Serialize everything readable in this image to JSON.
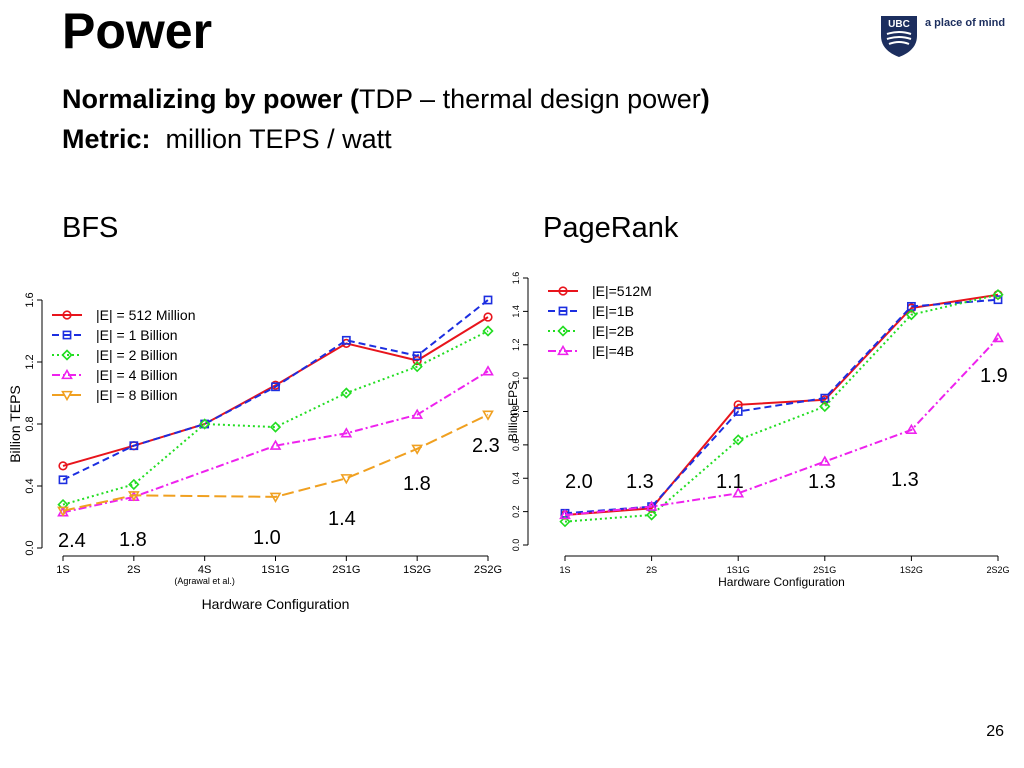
{
  "slide": {
    "title": "Power",
    "line1_bold": "Normalizing by power (",
    "line1_rest": "TDP – thermal design power",
    "line1_close": ")",
    "line2_bold": "Metric:",
    "line2_rest": "million TEPS / watt",
    "logo_text": "a place of mind",
    "logo_badge": "UBC",
    "page_number": "26"
  },
  "colors": {
    "red": "#e8141c",
    "blue": "#1c2ee0",
    "green": "#22dd22",
    "magenta": "#ee22ee",
    "orange": "#f0a020",
    "brand": "#1c2e5e"
  },
  "chart_data": [
    {
      "type": "line",
      "heading": "BFS",
      "categories": [
        "1S",
        "2S",
        "4S",
        "1S1G",
        "2S1G",
        "1S2G",
        "2S2G"
      ],
      "category_note": "(Agrawal et al.)",
      "xlabel": "Hardware Configuration",
      "ylabel": "Billion TEPS",
      "ylim": [
        0,
        1.6
      ],
      "yticks": [
        "0.0",
        "0.4",
        "0.8",
        "1.2",
        "1.6"
      ],
      "legend_position": "top-left",
      "series": [
        {
          "name": "|E| = 512 Million",
          "color": "red",
          "marker": "circle",
          "dash": "solid",
          "values": [
            0.53,
            0.66,
            0.8,
            1.05,
            1.32,
            1.21,
            1.49
          ]
        },
        {
          "name": "|E| = 1 Billion",
          "color": "blue",
          "marker": "square",
          "dash": "dashed",
          "values": [
            0.44,
            0.66,
            0.8,
            1.04,
            1.34,
            1.24,
            1.6
          ]
        },
        {
          "name": "|E| = 2 Billion",
          "color": "green",
          "marker": "diamond",
          "dash": "dotted",
          "values": [
            0.28,
            0.41,
            0.8,
            0.78,
            1.0,
            1.17,
            1.4
          ]
        },
        {
          "name": "|E| = 4 Billion",
          "color": "magenta",
          "marker": "triangle-up",
          "dash": "dashdot",
          "values": [
            0.23,
            0.33,
            null,
            0.66,
            0.74,
            0.86,
            1.14
          ]
        },
        {
          "name": "|E| = 8 Billion",
          "color": "orange",
          "marker": "triangle-down",
          "dash": "longdash",
          "values": [
            0.24,
            0.34,
            null,
            0.33,
            0.45,
            0.64,
            0.86
          ]
        }
      ],
      "annotations": [
        "2.4",
        "1.8",
        "1.0",
        "1.4",
        "1.8",
        "2.3"
      ]
    },
    {
      "type": "line",
      "heading": "PageRank",
      "categories": [
        "1S",
        "2S",
        "1S1G",
        "2S1G",
        "1S2G",
        "2S2G"
      ],
      "xlabel": "Hardware Configuration",
      "ylabel": "Billion EPS",
      "ylim": [
        0,
        1.6
      ],
      "yticks": [
        "0.0",
        "0.2",
        "0.4",
        "0.6",
        "0.8",
        "1.0",
        "1.2",
        "1.4",
        "1.6"
      ],
      "legend_position": "top-left",
      "series": [
        {
          "name": "|E|=512M",
          "color": "red",
          "marker": "circle",
          "dash": "solid",
          "values": [
            0.18,
            0.22,
            0.84,
            0.87,
            1.42,
            1.5
          ]
        },
        {
          "name": "|E|=1B",
          "color": "blue",
          "marker": "square",
          "dash": "dashed",
          "values": [
            0.19,
            0.23,
            0.8,
            0.88,
            1.43,
            1.47
          ]
        },
        {
          "name": "|E|=2B",
          "color": "green",
          "marker": "diamond",
          "dash": "dotted",
          "values": [
            0.14,
            0.18,
            0.63,
            0.83,
            1.38,
            1.5
          ]
        },
        {
          "name": "|E|=4B",
          "color": "magenta",
          "marker": "triangle-up",
          "dash": "dashdot",
          "values": [
            0.18,
            0.23,
            0.31,
            0.5,
            0.69,
            1.24
          ]
        }
      ],
      "annotations": [
        "2.0",
        "1.3",
        "1.1",
        "1.3",
        "1.3",
        "1.9"
      ]
    }
  ]
}
